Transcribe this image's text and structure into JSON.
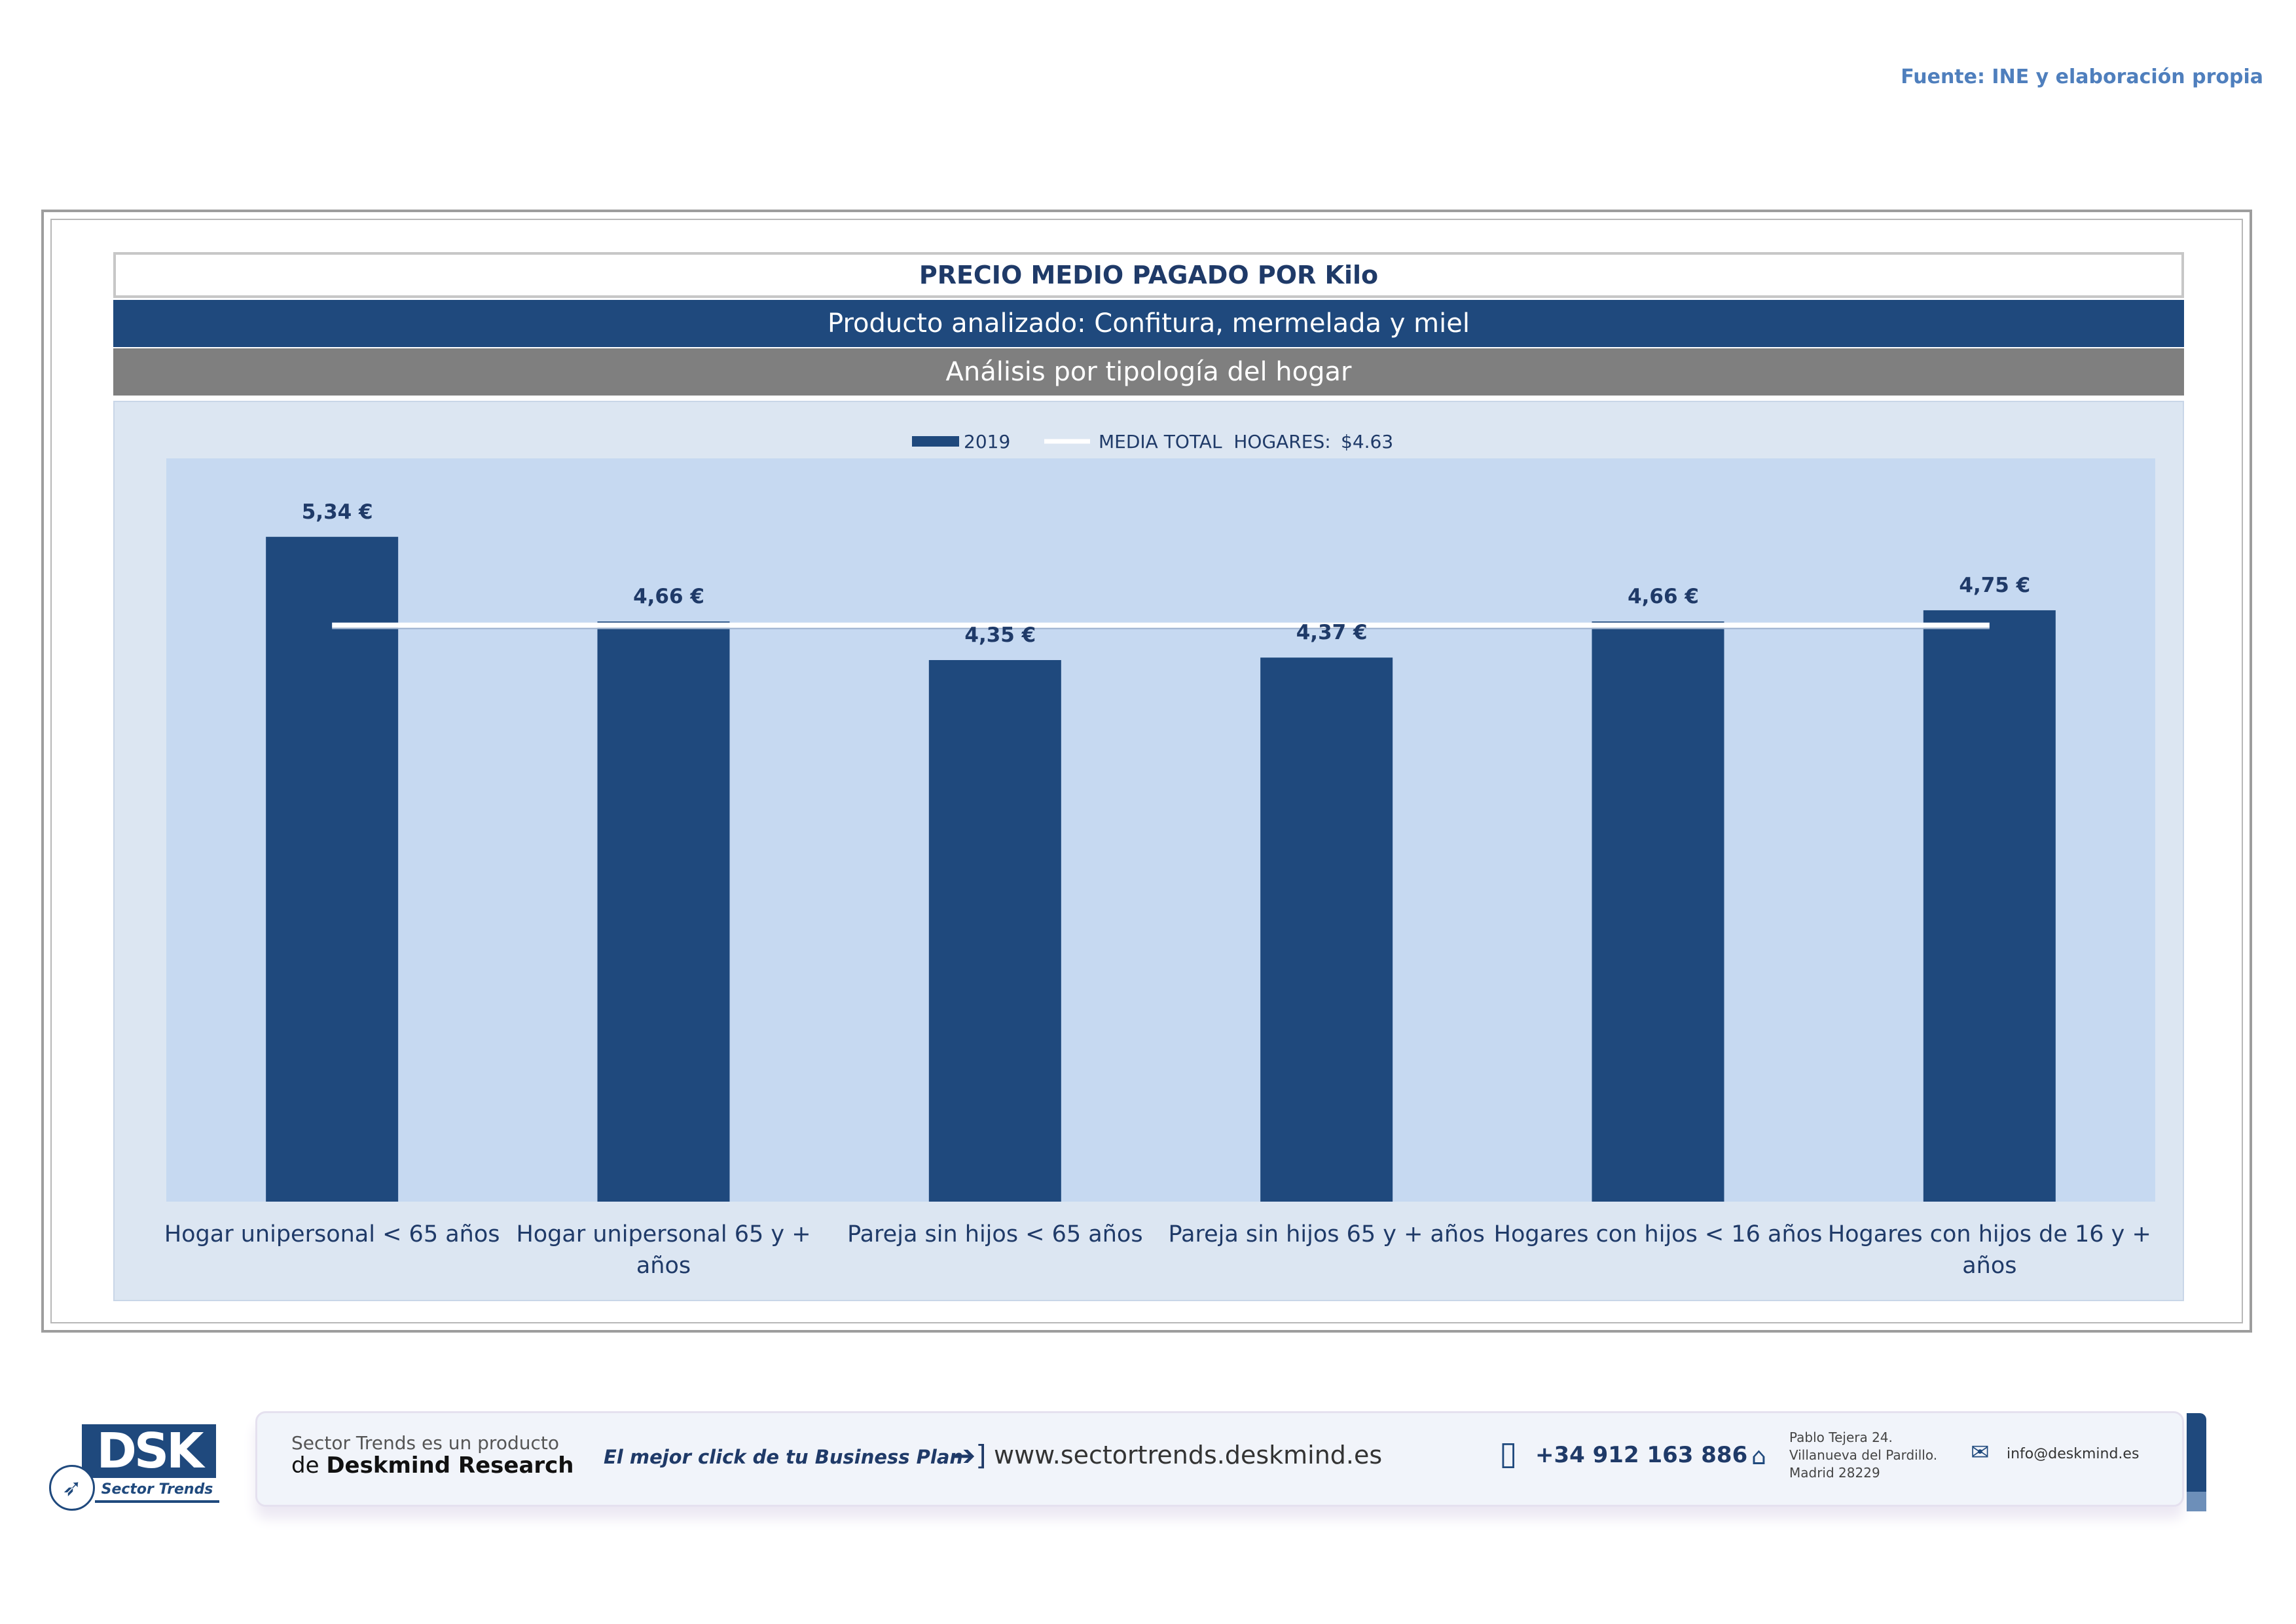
{
  "source_note": "Fuente: INE y elaboración propia",
  "header": {
    "title": "PRECIO MEDIO PAGADO POR Kilo",
    "product": "Producto analizado: Confitura, mermelada y miel",
    "analysis": "Análisis por tipología del hogar"
  },
  "legend": {
    "series_label": "2019",
    "line_label": "MEDIA TOTAL  HOGARES:",
    "line_value": "$4.63"
  },
  "colors": {
    "bar": "#1f497d",
    "average_line": "#ffffff",
    "plot_background": "#c6d9f1",
    "chart_background": "#dce6f2"
  },
  "chart_data": {
    "type": "bar",
    "categories": [
      [
        "Hogar unipersonal < 65 años"
      ],
      [
        "Hogar unipersonal  65 y +",
        "años"
      ],
      [
        "Pareja sin hijos < 65 años"
      ],
      [
        "Pareja sin hijos 65 y + años"
      ],
      [
        "Hogares con hijos < 16 años"
      ],
      [
        "Hogares con hijos de 16 y +",
        "años"
      ]
    ],
    "series": [
      {
        "name": "2019",
        "values": [
          5.34,
          4.66,
          4.35,
          4.37,
          4.66,
          4.75
        ]
      }
    ],
    "data_labels": [
      "5,34 €",
      "4,66 €",
      "4,35 €",
      "4,37 €",
      "4,66 €",
      "4,75 €"
    ],
    "average_line": {
      "name": "MEDIA TOTAL  HOGARES:",
      "value": 4.63
    },
    "ylim": [
      0,
      5.97
    ],
    "grid": false,
    "legend_position": "top-center"
  },
  "footer": {
    "logo_text": "DSK",
    "logo_sub": "Sector Trends",
    "product_line1": "Sector Trends es un producto",
    "product_line2_prefix": "de ",
    "product_line2_brand": "Deskmind Research",
    "slogan": "El mejor click de tu Business Plan",
    "url": "www.sectortrends.deskmind.es",
    "phone": "+34 912 163 886",
    "address_line1": "Pablo Tejera 24.",
    "address_line2": "Villanueva del Pardillo.",
    "address_line3": "Madrid 28229",
    "email": "info@deskmind.es"
  }
}
